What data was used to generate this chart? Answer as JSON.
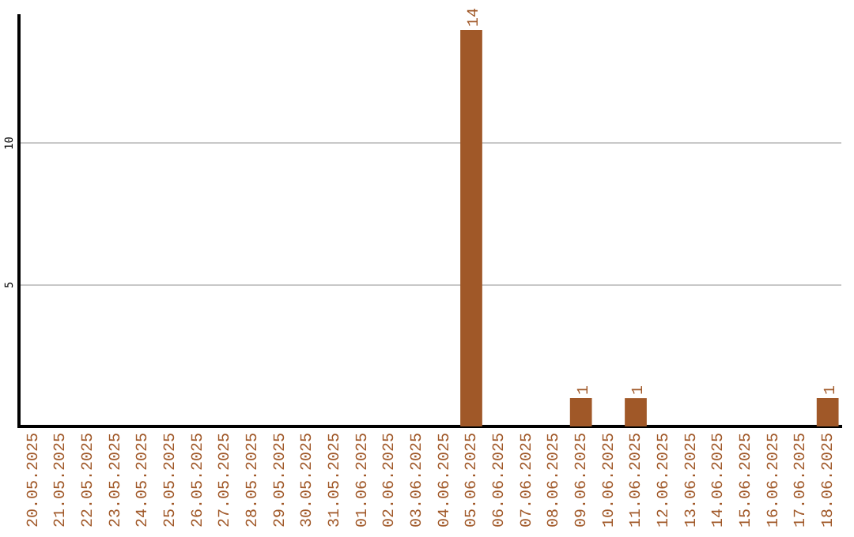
{
  "chart_data": {
    "type": "bar",
    "categories": [
      "20.05.2025",
      "21.05.2025",
      "22.05.2025",
      "23.05.2025",
      "24.05.2025",
      "25.05.2025",
      "26.05.2025",
      "27.05.2025",
      "28.05.2025",
      "29.05.2025",
      "30.05.2025",
      "31.05.2025",
      "01.06.2025",
      "02.06.2025",
      "03.06.2025",
      "04.06.2025",
      "05.06.2025",
      "06.06.2025",
      "07.06.2025",
      "08.06.2025",
      "09.06.2025",
      "10.06.2025",
      "11.06.2025",
      "12.06.2025",
      "13.06.2025",
      "14.06.2025",
      "15.06.2025",
      "16.06.2025",
      "17.06.2025",
      "18.06.2025"
    ],
    "values": [
      0,
      0,
      0,
      0,
      0,
      0,
      0,
      0,
      0,
      0,
      0,
      0,
      0,
      0,
      0,
      0,
      14,
      0,
      0,
      0,
      1,
      0,
      1,
      0,
      0,
      0,
      0,
      0,
      0,
      1
    ],
    "value_labels": [
      null,
      null,
      null,
      null,
      null,
      null,
      null,
      null,
      null,
      null,
      null,
      null,
      null,
      null,
      null,
      null,
      "14",
      null,
      null,
      null,
      "1",
      null,
      "1",
      null,
      null,
      null,
      null,
      null,
      null,
      "1"
    ],
    "color": "#a05828",
    "ylim": [
      0,
      14.5
    ],
    "yticks": [
      5,
      10
    ],
    "grid": "y",
    "legend": false
  }
}
